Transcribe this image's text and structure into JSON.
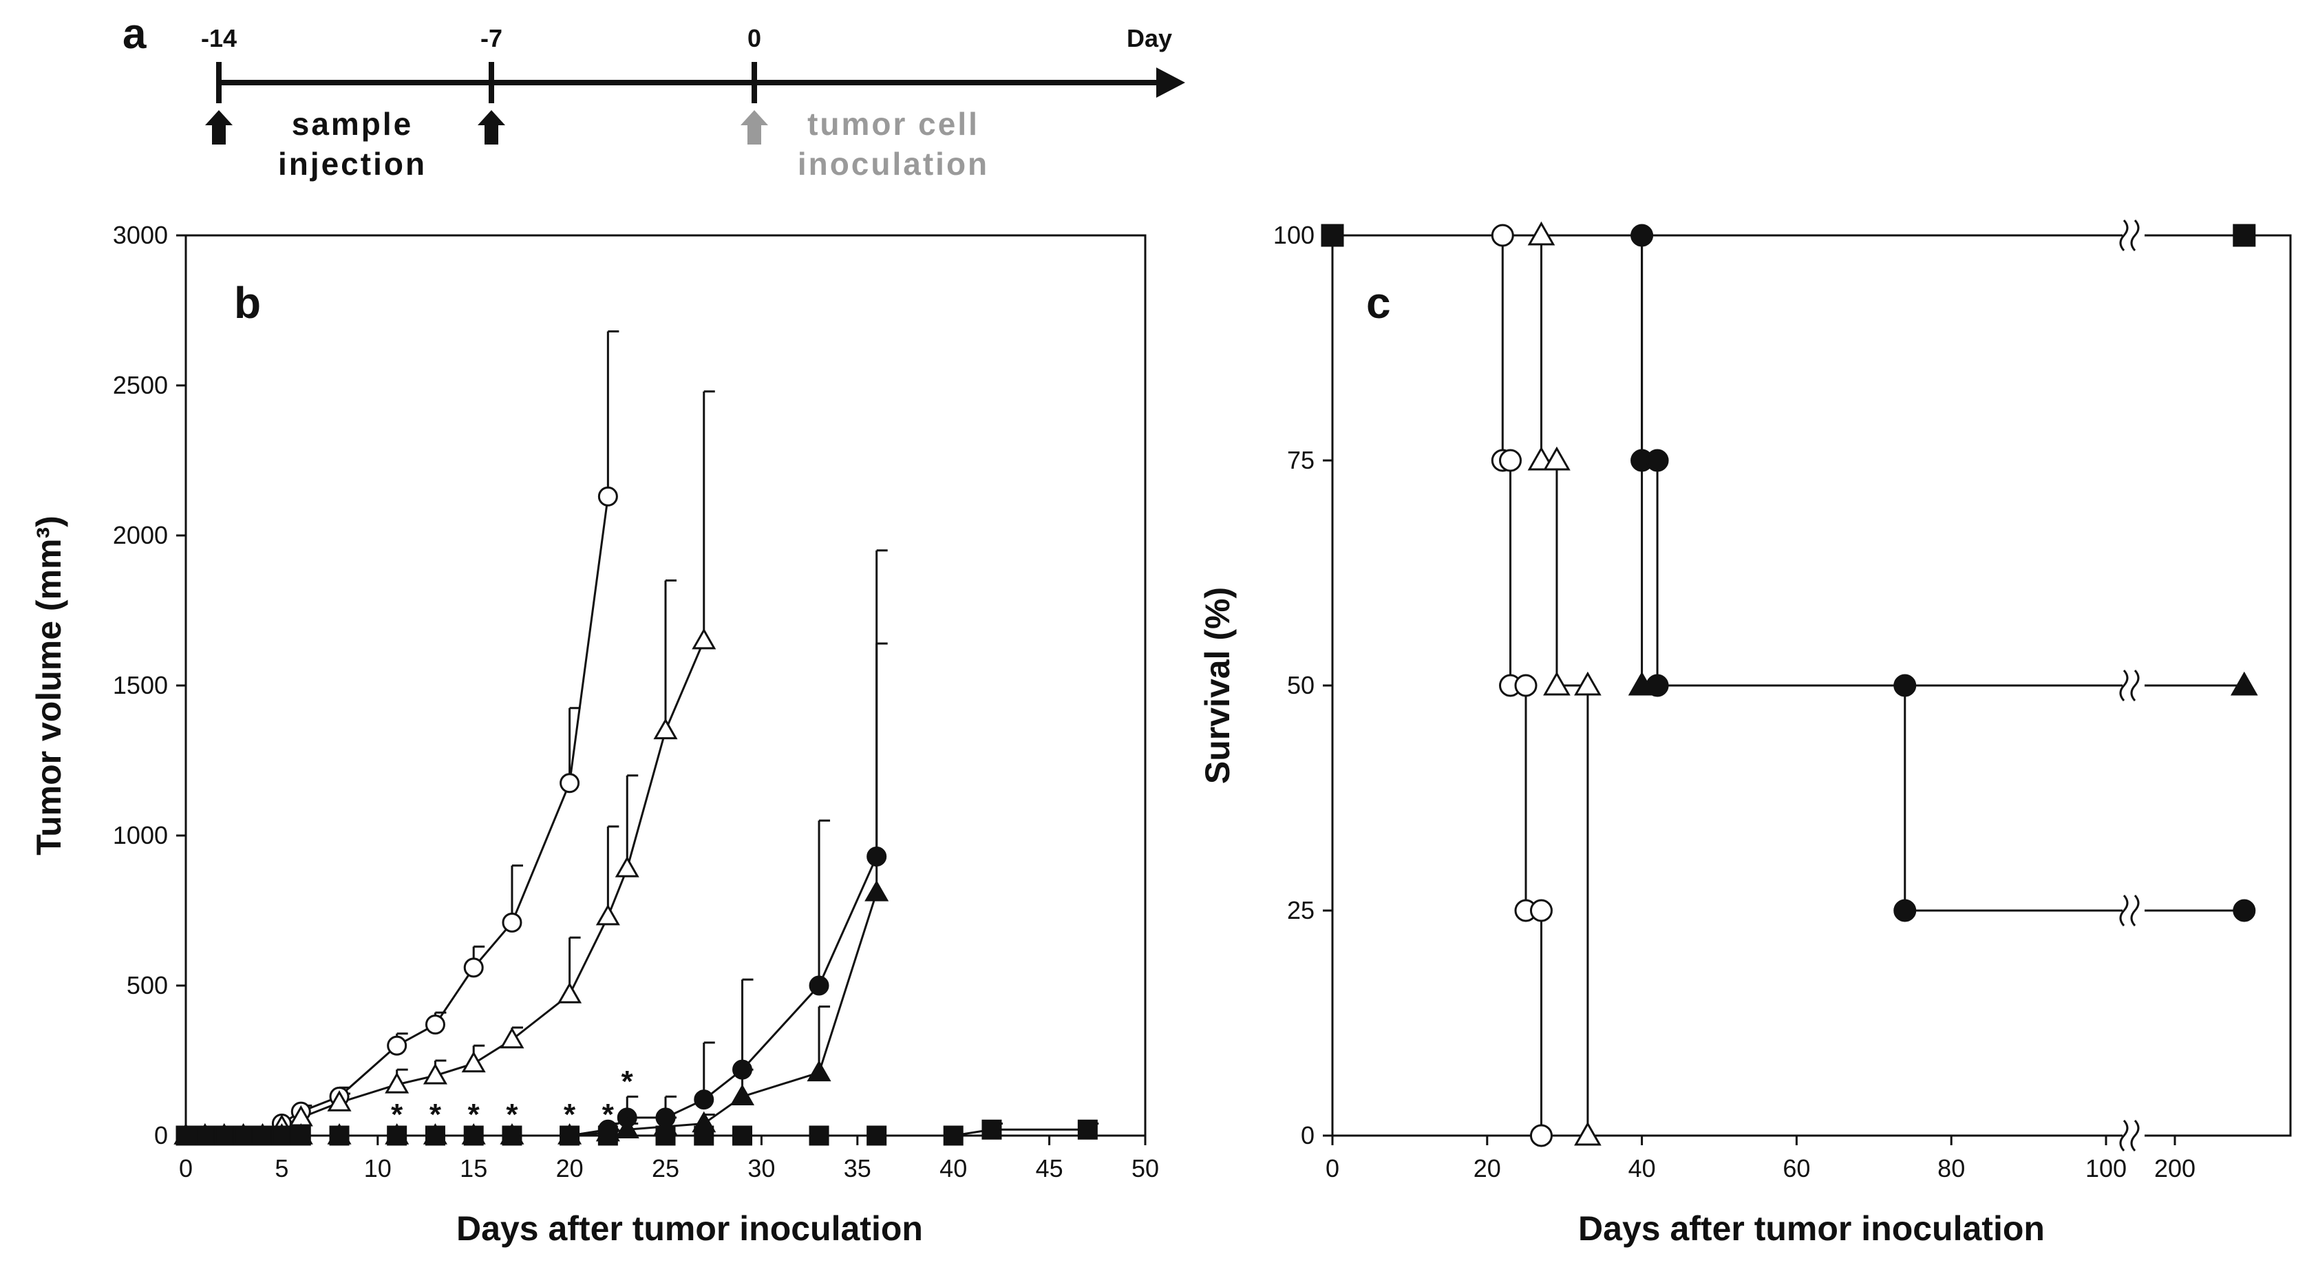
{
  "panels": {
    "a": {
      "letter": "a",
      "ticks": [
        {
          "day": -14,
          "label": "-14"
        },
        {
          "day": -7,
          "label": "-7"
        },
        {
          "day": 0,
          "label": "0"
        }
      ],
      "axis_label": "Day",
      "arrows": [
        {
          "day": -14,
          "color": "#111111"
        },
        {
          "day": -7,
          "color": "#111111"
        },
        {
          "day": 0,
          "color": "#9a9a9a"
        }
      ],
      "injection_text": [
        "sample",
        "injection"
      ],
      "inoculation_text": [
        "tumor cell",
        "inoculation"
      ],
      "inoculation_color": "#9a9a9a"
    },
    "b": {
      "letter": "b"
    },
    "c": {
      "letter": "c"
    }
  },
  "chart_data": [
    {
      "type": "line",
      "panel": "b",
      "title": "",
      "xlabel": "Days after tumor inoculation",
      "ylabel": "Tumor volume (mm³)",
      "xlim": [
        0,
        50
      ],
      "ylim": [
        0,
        3000
      ],
      "xticks": [
        0,
        5,
        10,
        15,
        20,
        25,
        30,
        35,
        40,
        45,
        50
      ],
      "yticks": [
        0,
        500,
        1000,
        1500,
        2000,
        2500,
        3000
      ],
      "series": [
        {
          "name": "open circle",
          "marker": "circle",
          "filled": false,
          "x": [
            0,
            1,
            2,
            3,
            4,
            5,
            6,
            8,
            11,
            13,
            15,
            17,
            20,
            22
          ],
          "y": [
            0,
            0,
            0,
            0,
            0,
            40,
            80,
            130,
            300,
            370,
            560,
            710,
            1175,
            2130
          ],
          "err": [
            0,
            0,
            0,
            0,
            0,
            0,
            20,
            30,
            40,
            40,
            70,
            190,
            250,
            550
          ]
        },
        {
          "name": "open triangle",
          "marker": "triangle",
          "filled": false,
          "x": [
            0,
            1,
            2,
            3,
            4,
            5,
            6,
            8,
            11,
            13,
            15,
            17,
            20,
            22,
            23,
            25,
            27
          ],
          "y": [
            0,
            0,
            0,
            0,
            0,
            30,
            60,
            110,
            170,
            200,
            240,
            320,
            470,
            730,
            890,
            1350,
            1650
          ],
          "err": [
            0,
            0,
            0,
            0,
            0,
            0,
            0,
            30,
            50,
            50,
            60,
            40,
            190,
            300,
            310,
            500,
            830
          ]
        },
        {
          "name": "filled circle",
          "marker": "circle",
          "filled": true,
          "x": [
            0,
            1,
            2,
            3,
            4,
            5,
            6,
            8,
            11,
            13,
            15,
            17,
            20,
            22,
            23,
            25,
            27,
            29,
            33,
            36
          ],
          "y": [
            0,
            0,
            0,
            0,
            0,
            0,
            0,
            0,
            0,
            0,
            0,
            0,
            0,
            20,
            60,
            60,
            120,
            220,
            500,
            930
          ],
          "err": [
            0,
            0,
            0,
            0,
            0,
            0,
            0,
            0,
            0,
            0,
            0,
            0,
            0,
            20,
            70,
            70,
            190,
            300,
            550,
            1020
          ]
        },
        {
          "name": "filled triangle",
          "marker": "triangle",
          "filled": true,
          "x": [
            0,
            1,
            2,
            3,
            4,
            5,
            6,
            8,
            11,
            13,
            15,
            17,
            20,
            22,
            23,
            25,
            27,
            29,
            33,
            36
          ],
          "y": [
            0,
            0,
            0,
            0,
            0,
            0,
            0,
            0,
            0,
            0,
            0,
            0,
            0,
            10,
            20,
            30,
            40,
            130,
            210,
            810
          ],
          "err": [
            0,
            0,
            0,
            0,
            0,
            0,
            0,
            0,
            0,
            0,
            0,
            0,
            0,
            10,
            20,
            30,
            30,
            90,
            220,
            830
          ]
        },
        {
          "name": "filled square",
          "marker": "square",
          "filled": true,
          "x": [
            0,
            1,
            2,
            3,
            4,
            5,
            6,
            8,
            11,
            13,
            15,
            17,
            20,
            22,
            25,
            27,
            29,
            33,
            36,
            40,
            42,
            47
          ],
          "y": [
            0,
            0,
            0,
            0,
            0,
            0,
            0,
            0,
            0,
            0,
            0,
            0,
            0,
            0,
            0,
            0,
            0,
            0,
            0,
            0,
            20,
            20
          ],
          "err": [
            0,
            0,
            0,
            0,
            0,
            0,
            0,
            0,
            0,
            0,
            0,
            0,
            0,
            0,
            0,
            0,
            0,
            0,
            0,
            0,
            20,
            20
          ]
        }
      ],
      "annotations": [
        {
          "text": "*",
          "x": 11,
          "y": 60
        },
        {
          "text": "*",
          "x": 13,
          "y": 60
        },
        {
          "text": "*",
          "x": 15,
          "y": 60
        },
        {
          "text": "*",
          "x": 17,
          "y": 60
        },
        {
          "text": "*",
          "x": 20,
          "y": 60
        },
        {
          "text": "*",
          "x": 22,
          "y": 60
        },
        {
          "text": "*",
          "x": 23,
          "y": 170
        }
      ]
    },
    {
      "type": "line",
      "subtype": "kaplan-meier",
      "panel": "c",
      "title": "",
      "xlabel": "Days after tumor inoculation",
      "ylabel": "Survival (%)",
      "xlim": [
        0,
        235
      ],
      "ylim": [
        0,
        100
      ],
      "xticks": [
        0,
        20,
        40,
        60,
        80,
        100,
        200
      ],
      "yticks": [
        0,
        25,
        50,
        75,
        100
      ],
      "axis_break": {
        "from": 100,
        "to": 200
      },
      "series": [
        {
          "name": "open circle",
          "marker": "circle",
          "filled": false,
          "steps": [
            [
              0,
              100
            ],
            [
              22,
              75
            ],
            [
              23,
              50
            ],
            [
              25,
              25
            ],
            [
              27,
              0
            ]
          ],
          "points": [
            [
              22,
              100
            ],
            [
              22,
              75
            ],
            [
              23,
              75
            ],
            [
              23,
              50
            ],
            [
              25,
              50
            ],
            [
              25,
              25
            ],
            [
              27,
              25
            ],
            [
              27,
              0
            ]
          ]
        },
        {
          "name": "open triangle",
          "marker": "triangle",
          "filled": false,
          "steps": [
            [
              0,
              100
            ],
            [
              27,
              75
            ],
            [
              29,
              50
            ],
            [
              33,
              0
            ]
          ],
          "points": [
            [
              27,
              100
            ],
            [
              27,
              75
            ],
            [
              29,
              75
            ],
            [
              29,
              50
            ],
            [
              33,
              50
            ],
            [
              33,
              0
            ]
          ]
        },
        {
          "name": "filled circle",
          "marker": "circle",
          "filled": true,
          "steps": [
            [
              0,
              100
            ],
            [
              40,
              75
            ],
            [
              42,
              50
            ],
            [
              74,
              25
            ]
          ],
          "end_x": 221,
          "points": [
            [
              40,
              100
            ],
            [
              40,
              75
            ],
            [
              42,
              75
            ],
            [
              42,
              50
            ],
            [
              74,
              50
            ],
            [
              74,
              25
            ],
            [
              221,
              25
            ]
          ]
        },
        {
          "name": "filled triangle",
          "marker": "triangle",
          "filled": true,
          "steps": [
            [
              0,
              100
            ],
            [
              40,
              50
            ]
          ],
          "end_x": 221,
          "points": [
            [
              40,
              50
            ],
            [
              221,
              50
            ]
          ]
        },
        {
          "name": "filled square",
          "marker": "square",
          "filled": true,
          "steps": [
            [
              0,
              100
            ]
          ],
          "end_x": 221,
          "points": [
            [
              0,
              100
            ],
            [
              221,
              100
            ]
          ]
        }
      ]
    }
  ]
}
